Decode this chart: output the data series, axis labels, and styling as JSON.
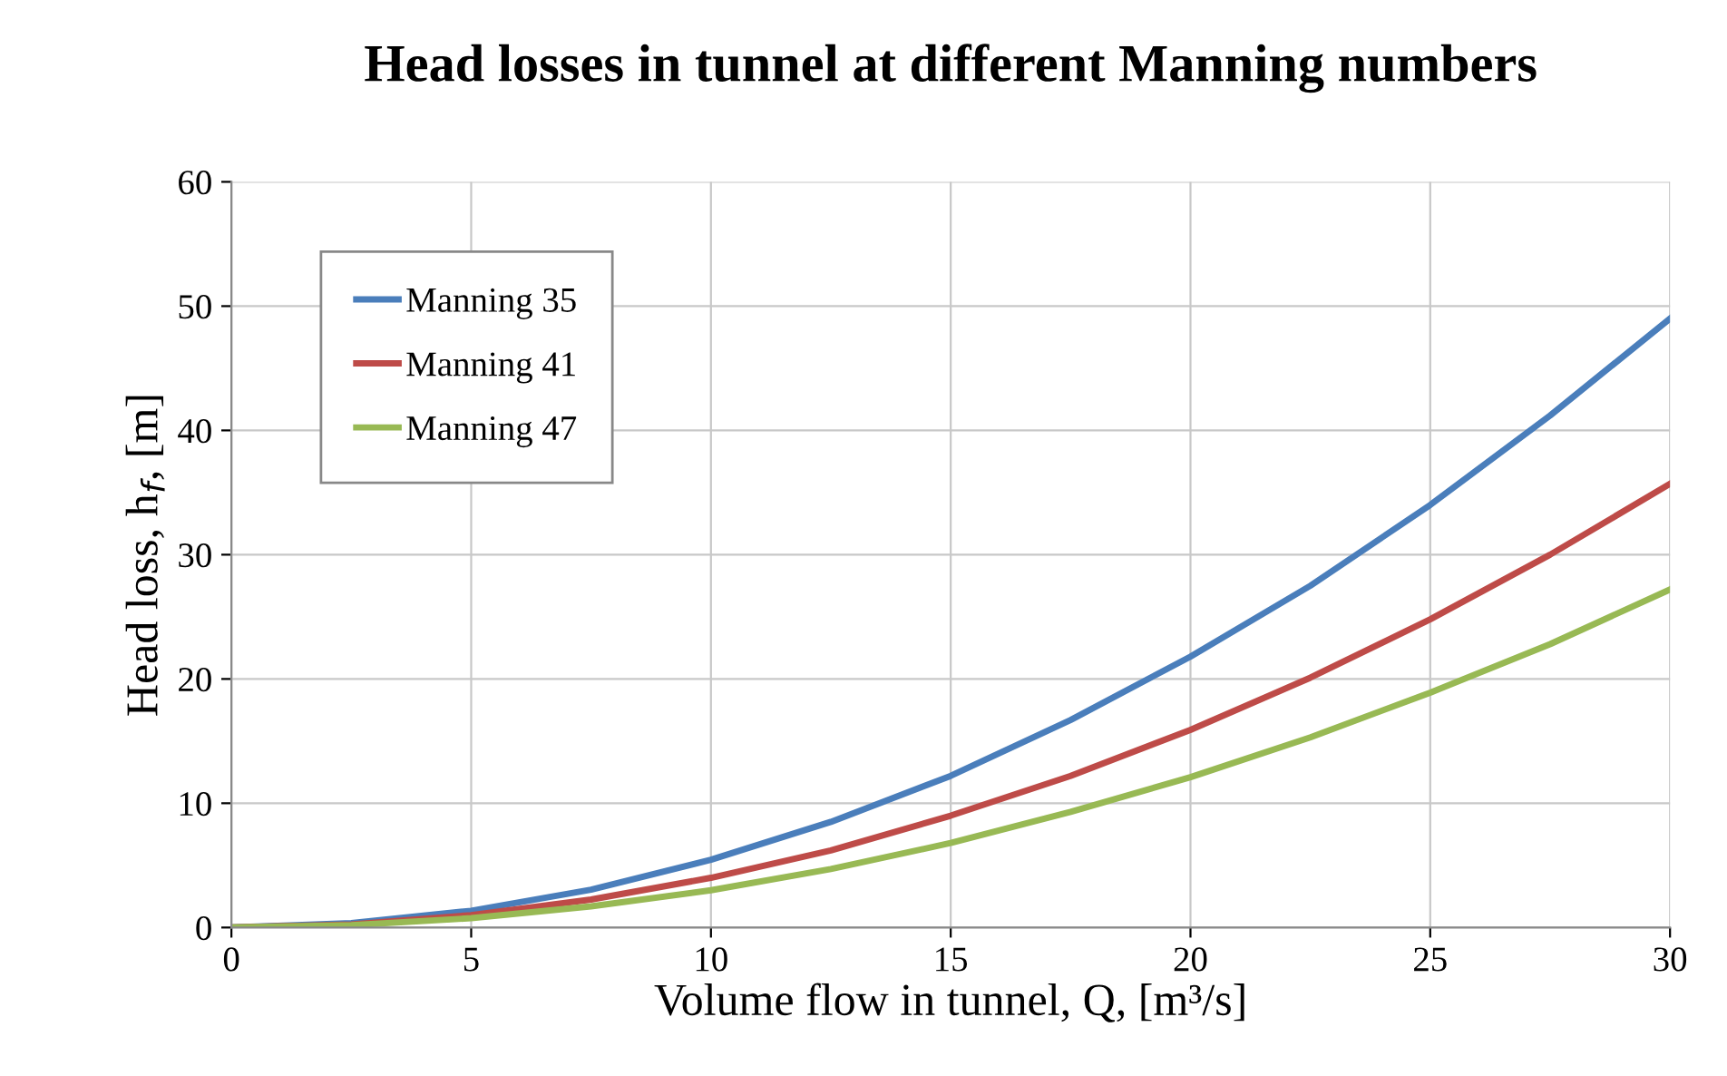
{
  "chart_data": {
    "type": "line",
    "title": "Head losses in tunnel at different Manning numbers",
    "xlabel": "Volume flow in tunnel, Q, [m³/s]",
    "ylabel": "Head loss, h$_{f}$, [m]",
    "x": [
      0,
      2.5,
      5,
      7.5,
      10,
      12.5,
      15,
      17.5,
      20,
      22.5,
      25,
      27.5,
      30
    ],
    "series": [
      {
        "name": "Manning 35",
        "color": "#4a7ebb",
        "values": [
          0,
          0.35,
          1.35,
          3.05,
          5.45,
          8.5,
          12.2,
          16.7,
          21.8,
          27.5,
          34,
          41.2,
          49
        ]
      },
      {
        "name": "Manning 41",
        "color": "#be4b48",
        "values": [
          0,
          0.25,
          1.0,
          2.25,
          4.0,
          6.2,
          9.0,
          12.2,
          15.9,
          20.1,
          24.8,
          30,
          35.7
        ]
      },
      {
        "name": "Manning 47",
        "color": "#98b954",
        "values": [
          0,
          0.19,
          0.75,
          1.7,
          3.0,
          4.7,
          6.8,
          9.3,
          12.1,
          15.3,
          18.9,
          22.8,
          27.2
        ]
      }
    ],
    "xlim": [
      0,
      30
    ],
    "xticks": [
      0,
      5,
      10,
      15,
      20,
      25,
      30
    ],
    "ylim": [
      0,
      60
    ],
    "yticks": [
      0,
      10,
      20,
      30,
      40,
      50,
      60
    ],
    "grid": true,
    "legend": "top left",
    "marker": "none",
    "line_style": "solid"
  }
}
